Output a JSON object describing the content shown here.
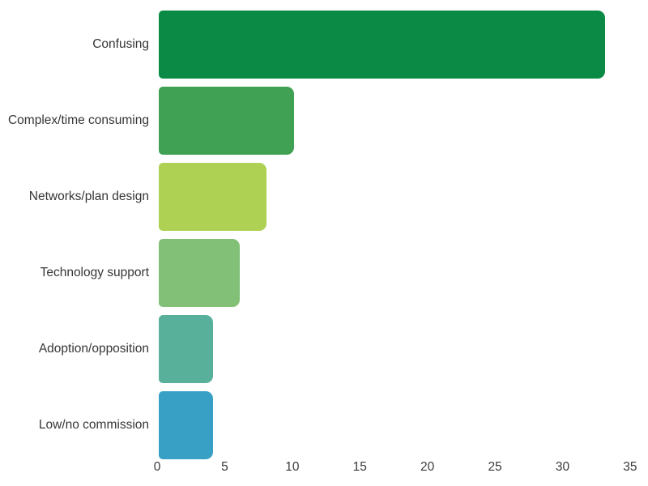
{
  "chart_data": {
    "type": "bar",
    "orientation": "horizontal",
    "title": "",
    "xlabel": "",
    "ylabel": "",
    "categories": [
      "Confusing",
      "Complex/time consuming",
      "Networks/plan design",
      "Technology support",
      "Adoption/opposition",
      "Low/no commission"
    ],
    "values": [
      33,
      10,
      8,
      6,
      4,
      4
    ],
    "bar_colors": [
      "#0a8a45",
      "#40a154",
      "#aed053",
      "#82c077",
      "#58b09b",
      "#38a0c5"
    ],
    "xlim": [
      0,
      35
    ],
    "xticks": [
      0,
      5,
      10,
      15,
      20,
      25,
      30,
      35
    ],
    "grid": false,
    "legend": false,
    "background": "#ffffff",
    "label_color": "#363636",
    "tick_color": "#3a3a3a"
  }
}
